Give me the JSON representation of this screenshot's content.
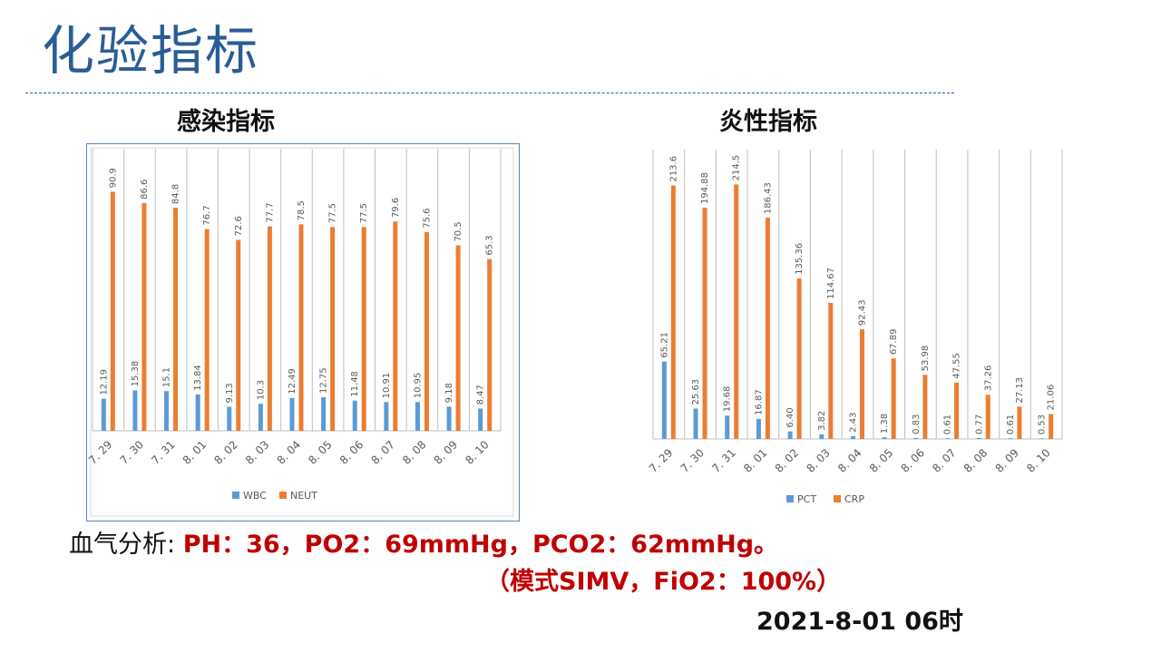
{
  "title": "化验指标",
  "blood_gas": {
    "label": "血气分析:",
    "values": "PH：36，PO2：69mmHg，PCO2：62mmHg。",
    "mode": "（模式SIMV，FiO2：100%）"
  },
  "timestamp": "2021-8-01 06时",
  "colors": {
    "blue": "#5b9bd5",
    "orange": "#ed7d31",
    "title": "#2a5d96",
    "red": "#c00000"
  },
  "chart_data": [
    {
      "type": "bar",
      "title": "感染指标",
      "categories": [
        "7. 29",
        "7. 30",
        "7. 31",
        "8. 01",
        "8. 02",
        "8. 03",
        "8. 04",
        "8. 05",
        "8. 06",
        "8. 07",
        "8. 08",
        "8. 09",
        "8. 10"
      ],
      "series": [
        {
          "name": "WBC",
          "values": [
            12.19,
            15.38,
            15.1,
            13.84,
            9.13,
            10.3,
            12.49,
            12.75,
            11.48,
            10.91,
            10.95,
            9.18,
            8.47
          ],
          "labels": [
            "12.19",
            "15.38",
            "15.1",
            "13.84",
            "9.13",
            "10.3",
            "12.49",
            "12.75",
            "11.48",
            "10.91",
            "10.95",
            "9.18",
            "8.47"
          ]
        },
        {
          "name": "NEUT",
          "values": [
            90.9,
            86.6,
            84.8,
            76.7,
            72.6,
            77.7,
            78.5,
            77.5,
            77.5,
            79.6,
            75.6,
            70.5,
            65.3
          ],
          "labels": [
            "90.9",
            "86.6",
            "84.8",
            "76.7",
            "72.6",
            "77.7",
            "78.5",
            "77.5",
            "77.5",
            "79.6",
            "75.6",
            "70.5",
            "65.3"
          ]
        }
      ],
      "ylim": [
        0,
        100
      ],
      "legend": "bottom",
      "grid": "vertical"
    },
    {
      "type": "bar",
      "title": "炎性指标",
      "categories": [
        "7. 29",
        "7. 30",
        "7. 31",
        "8. 01",
        "8. 02",
        "8. 03",
        "8. 04",
        "8. 05",
        "8. 06",
        "8. 07",
        "8. 08",
        "8. 09",
        "8. 10"
      ],
      "series": [
        {
          "name": "PCT",
          "values": [
            65.21,
            25.63,
            19.68,
            16.87,
            6.4,
            3.82,
            2.43,
            1.38,
            0.83,
            0.61,
            0.77,
            0.61,
            0.53
          ],
          "labels": [
            "65.21",
            "25.63",
            "19.68",
            "16.87",
            "6.40",
            "3.82",
            "2.43",
            "1.38",
            "0.83",
            "0.61",
            "0.77",
            "0.61",
            "0.53"
          ]
        },
        {
          "name": "CRP",
          "values": [
            213.6,
            194.88,
            214.5,
            186.43,
            135.36,
            114.67,
            92.43,
            67.89,
            53.98,
            47.55,
            37.26,
            27.13,
            21.06
          ],
          "labels": [
            "213.6",
            "194.88",
            "214.5",
            "186.43",
            "135.36",
            "114.67",
            "92.43",
            "67.89",
            "53.98",
            "47.55",
            "37.26",
            "27.13",
            "21.06"
          ]
        }
      ],
      "ylim": [
        0,
        240
      ],
      "legend": "bottom",
      "grid": "vertical"
    }
  ]
}
